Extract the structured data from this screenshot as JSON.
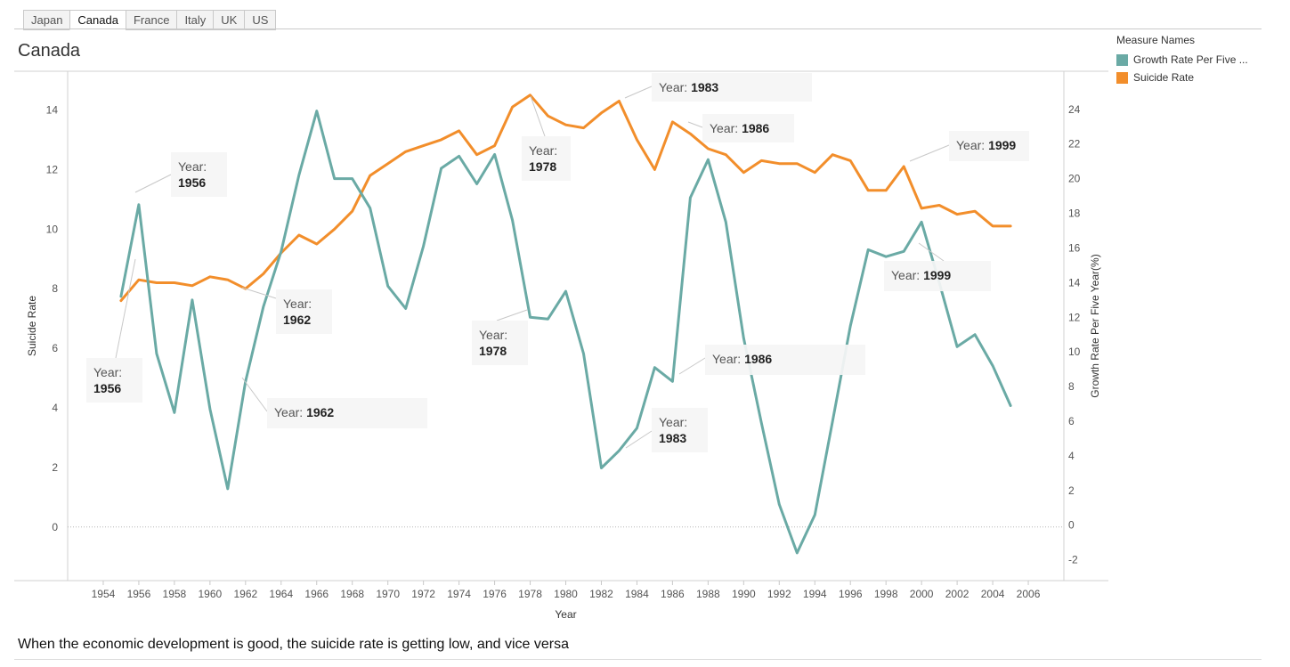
{
  "tabs": [
    {
      "label": "Japan",
      "active": false
    },
    {
      "label": "Canada",
      "active": true
    },
    {
      "label": "France",
      "active": false
    },
    {
      "label": "Italy",
      "active": false
    },
    {
      "label": "UK",
      "active": false
    },
    {
      "label": "US",
      "active": false
    }
  ],
  "title": "Canada",
  "legend": {
    "title": "Measure Names",
    "items": [
      {
        "label": "Growth Rate Per Five ...",
        "color": "#6aaaa5"
      },
      {
        "label": "Suicide Rate",
        "color": "#f28e2b"
      }
    ]
  },
  "footer": "When the economic development is good, the suicide rate is getting low, and vice versa",
  "chart_data": {
    "type": "line",
    "xlabel": "Year",
    "ylabel": "Suicide Rate",
    "y2label": "Growth Rate Per Five Year(%)",
    "xlim": [
      1952,
      2008
    ],
    "ylim": [
      -1.8,
      15.3
    ],
    "y2lim": [
      -3.2,
      26.2
    ],
    "xticks": [
      1954,
      1956,
      1958,
      1960,
      1962,
      1964,
      1966,
      1968,
      1970,
      1972,
      1974,
      1976,
      1978,
      1980,
      1982,
      1984,
      1986,
      1988,
      1990,
      1992,
      1994,
      1996,
      1998,
      2000,
      2002,
      2004,
      2006
    ],
    "yticks": [
      0,
      2,
      4,
      6,
      8,
      10,
      12,
      14
    ],
    "y2ticks": [
      -2,
      0,
      2,
      4,
      6,
      8,
      10,
      12,
      14,
      16,
      18,
      20,
      22,
      24
    ],
    "zero_line": true,
    "series": [
      {
        "name": "Suicide Rate",
        "axis": "left",
        "color": "#f28e2b",
        "x": [
          1955,
          1956,
          1957,
          1958,
          1959,
          1960,
          1961,
          1962,
          1963,
          1964,
          1965,
          1966,
          1967,
          1968,
          1969,
          1970,
          1971,
          1972,
          1973,
          1974,
          1975,
          1976,
          1977,
          1978,
          1979,
          1980,
          1981,
          1982,
          1983,
          1984,
          1985,
          1986,
          1987,
          1988,
          1989,
          1990,
          1991,
          1992,
          1993,
          1994,
          1995,
          1996,
          1997,
          1998,
          1999,
          2000,
          2001,
          2002,
          2003,
          2004,
          2005
        ],
        "values": [
          7.6,
          8.3,
          8.2,
          8.2,
          8.1,
          8.4,
          8.3,
          8.0,
          8.5,
          9.2,
          9.8,
          9.5,
          10.0,
          10.6,
          11.8,
          12.2,
          12.6,
          12.8,
          13.0,
          13.3,
          12.5,
          12.8,
          14.1,
          14.5,
          13.8,
          13.5,
          13.4,
          13.9,
          14.3,
          13.0,
          12.0,
          13.6,
          13.2,
          12.7,
          12.5,
          11.9,
          12.3,
          12.2,
          12.2,
          11.9,
          12.5,
          12.3,
          11.3,
          11.3,
          12.1,
          10.7,
          10.8,
          10.5,
          10.6,
          10.1,
          10.1
        ]
      },
      {
        "name": "Growth Rate Per Five ...",
        "axis": "right",
        "color": "#6aaaa5",
        "x": [
          1955,
          1956,
          1957,
          1958,
          1959,
          1960,
          1961,
          1962,
          1963,
          1964,
          1965,
          1966,
          1967,
          1968,
          1969,
          1970,
          1971,
          1972,
          1973,
          1974,
          1975,
          1976,
          1977,
          1978,
          1979,
          1980,
          1981,
          1982,
          1983,
          1984,
          1985,
          1986,
          1987,
          1988,
          1989,
          1990,
          1991,
          1992,
          1993,
          1994,
          1995,
          1996,
          1997,
          1998,
          1999,
          2000,
          2001,
          2002,
          2003,
          2004,
          2005
        ],
        "values": [
          13.2,
          18.5,
          9.9,
          6.5,
          13.0,
          6.7,
          2.1,
          8.3,
          12.6,
          15.8,
          20.2,
          23.9,
          20.0,
          20.0,
          18.3,
          13.8,
          12.5,
          16.1,
          20.6,
          21.3,
          19.7,
          21.4,
          17.6,
          12.0,
          11.9,
          13.5,
          9.9,
          3.3,
          4.3,
          5.6,
          9.1,
          8.3,
          18.9,
          21.1,
          17.5,
          10.8,
          5.9,
          1.2,
          -1.6,
          0.6,
          6.0,
          11.5,
          15.9,
          15.5,
          15.8,
          17.5,
          14.0,
          10.3,
          11.0,
          9.2,
          6.9
        ]
      }
    ],
    "annotations": [
      {
        "prefix": "Year:",
        "value": "1956"
      },
      {
        "prefix": "Year:",
        "value": "1956"
      },
      {
        "prefix": "Year:",
        "value": "1962"
      },
      {
        "prefix": "Year:",
        "value": "1962"
      },
      {
        "prefix": "Year:",
        "value": "1978"
      },
      {
        "prefix": "Year:",
        "value": "1978"
      },
      {
        "prefix": "Year:",
        "value": "1983"
      },
      {
        "prefix": "Year:",
        "value": "1983"
      },
      {
        "prefix": "Year:",
        "value": "1986"
      },
      {
        "prefix": "Year:",
        "value": "1986"
      },
      {
        "prefix": "Year:",
        "value": "1999"
      },
      {
        "prefix": "Year:",
        "value": "1999"
      }
    ]
  }
}
